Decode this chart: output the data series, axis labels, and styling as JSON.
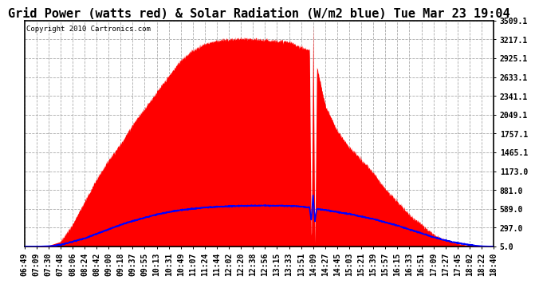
{
  "title": "Grid Power (watts red) & Solar Radiation (W/m2 blue) Tue Mar 23 19:04",
  "copyright": "Copyright 2010 Cartronics.com",
  "y_ticks": [
    5.0,
    297.0,
    589.0,
    881.0,
    1173.0,
    1465.1,
    1757.1,
    2049.1,
    2341.1,
    2633.1,
    2925.1,
    3217.1,
    3509.1
  ],
  "y_min": 5.0,
  "y_max": 3509.1,
  "background_color": "#ffffff",
  "fill_color": "#ff0000",
  "line_color": "#0000ff",
  "title_fontsize": 11,
  "tick_fontsize": 7,
  "x_labels": [
    "06:49",
    "07:09",
    "07:30",
    "07:48",
    "08:06",
    "08:24",
    "08:42",
    "09:00",
    "09:18",
    "09:37",
    "09:55",
    "10:13",
    "10:31",
    "10:49",
    "11:07",
    "11:24",
    "11:44",
    "12:02",
    "12:20",
    "12:38",
    "12:56",
    "13:15",
    "13:33",
    "13:51",
    "14:09",
    "14:27",
    "14:45",
    "15:03",
    "15:21",
    "15:39",
    "15:57",
    "16:15",
    "16:33",
    "16:51",
    "17:09",
    "17:27",
    "17:45",
    "18:02",
    "18:22",
    "18:40"
  ],
  "red_x": [
    0,
    1,
    2,
    3,
    4,
    5,
    6,
    7,
    8,
    9,
    10,
    11,
    12,
    13,
    14,
    15,
    16,
    17,
    18,
    19,
    20,
    21,
    22,
    23,
    23.7,
    23.85,
    24.0,
    24.15,
    24.3,
    25,
    26,
    27,
    28,
    29,
    30,
    31,
    32,
    33,
    34,
    35,
    36,
    37,
    38,
    39
  ],
  "red_y": [
    5,
    5,
    20,
    80,
    350,
    700,
    1050,
    1350,
    1600,
    1900,
    2150,
    2400,
    2650,
    2900,
    3050,
    3150,
    3200,
    3220,
    3230,
    3220,
    3210,
    3200,
    3180,
    3100,
    3050,
    0,
    3509,
    0,
    2800,
    2200,
    1800,
    1550,
    1350,
    1150,
    900,
    700,
    500,
    350,
    200,
    100,
    50,
    20,
    5,
    5
  ],
  "blue_x": [
    0,
    1,
    2,
    3,
    4,
    5,
    6,
    7,
    8,
    9,
    10,
    11,
    12,
    13,
    14,
    15,
    16,
    17,
    18,
    19,
    20,
    21,
    22,
    23,
    23.7,
    23.85,
    24.0,
    24.15,
    24.3,
    25,
    26,
    27,
    28,
    29,
    30,
    31,
    32,
    33,
    34,
    35,
    36,
    37,
    38,
    39
  ],
  "blue_y": [
    5,
    5,
    10,
    30,
    80,
    130,
    200,
    270,
    340,
    400,
    450,
    500,
    540,
    570,
    590,
    610,
    620,
    630,
    635,
    638,
    640,
    638,
    635,
    625,
    610,
    400,
    800,
    400,
    590,
    570,
    540,
    510,
    470,
    430,
    380,
    330,
    270,
    210,
    150,
    100,
    60,
    30,
    10,
    5
  ]
}
